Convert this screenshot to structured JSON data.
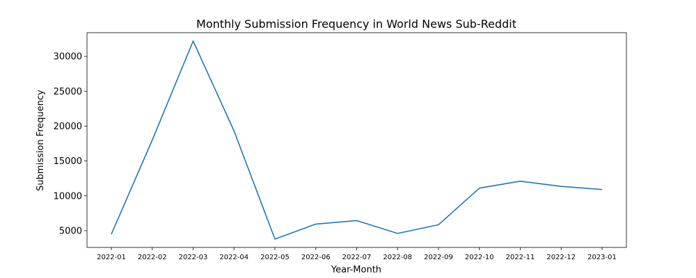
{
  "chart_data": {
    "type": "line",
    "title": "Monthly Submission Frequency in World News Sub-Reddit",
    "xlabel": "Year-Month",
    "ylabel": "Submission Frequency",
    "categories": [
      "2022-01",
      "2022-02",
      "2022-03",
      "2022-04",
      "2022-05",
      "2022-06",
      "2022-07",
      "2022-08",
      "2022-09",
      "2022-10",
      "2022-11",
      "2022-12",
      "2023-01"
    ],
    "series": [
      {
        "values": [
          4500,
          18000,
          32200,
          19300,
          3800,
          5950,
          6450,
          4600,
          5850,
          11100,
          12100,
          11350,
          10900
        ]
      }
    ],
    "yticks": [
      5000,
      10000,
      15000,
      20000,
      25000,
      30000
    ],
    "ytick_labels": [
      "5000",
      "10000",
      "15000",
      "20000",
      "25000",
      "30000"
    ],
    "ylim": [
      2600,
      33400
    ],
    "grid": false,
    "line_color": "#1f77b4"
  }
}
